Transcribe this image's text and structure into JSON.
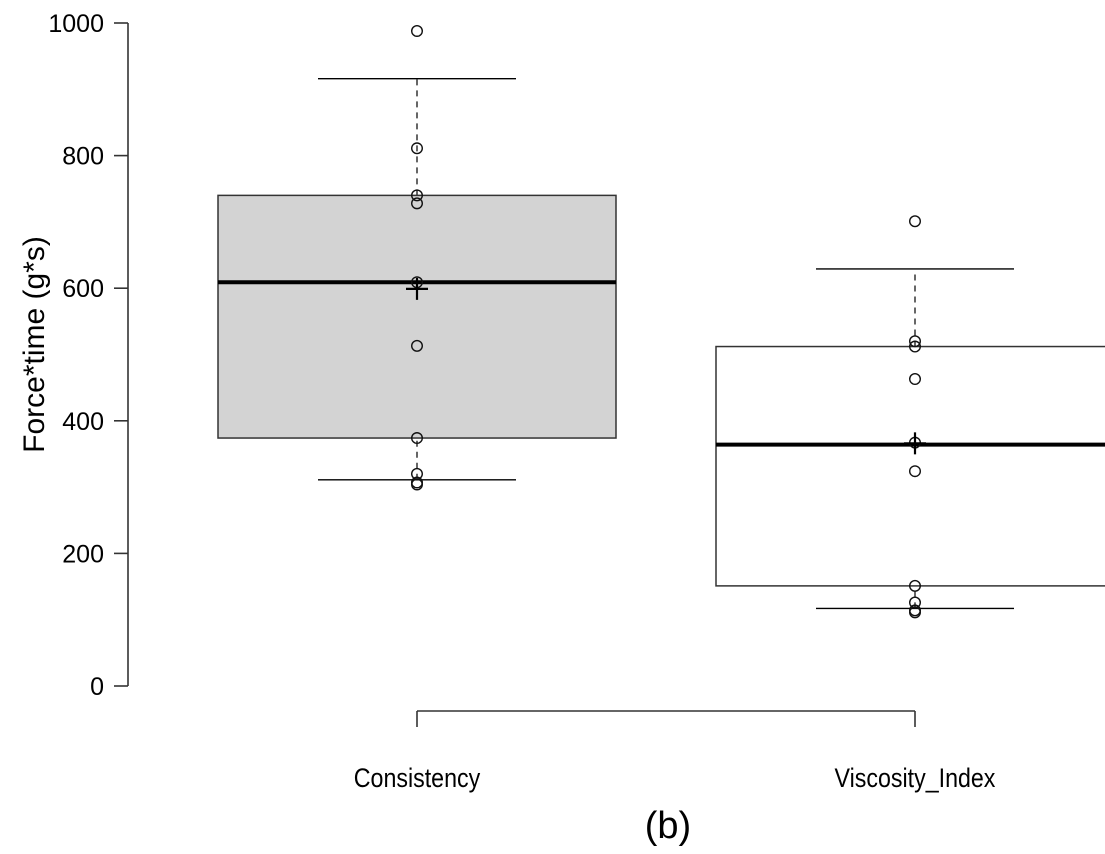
{
  "chart_data": {
    "type": "box",
    "ylabel": "Force*time (g*s)",
    "caption": "(b)",
    "ylim": [
      0,
      1000
    ],
    "yticks": [
      0,
      200,
      400,
      600,
      800,
      1000
    ],
    "categories": [
      "Consistency",
      "Viscosity_Index"
    ],
    "boxes": [
      {
        "category": "Consistency",
        "fill": "#d3d3d3",
        "q1": 374,
        "median": 609,
        "q3": 740,
        "whisker_low": 311,
        "whisker_high": 916,
        "mean": 599,
        "points": [
          988,
          811,
          740,
          728,
          609,
          513,
          374,
          320,
          307,
          304
        ]
      },
      {
        "category": "Viscosity_Index",
        "fill": "#ffffff",
        "q1": 151,
        "median": 364,
        "q3": 512,
        "whisker_low": 117,
        "whisker_high": 629,
        "mean": 366,
        "points": [
          701,
          520,
          512,
          463,
          367,
          324,
          151,
          126,
          114,
          111
        ]
      }
    ]
  }
}
